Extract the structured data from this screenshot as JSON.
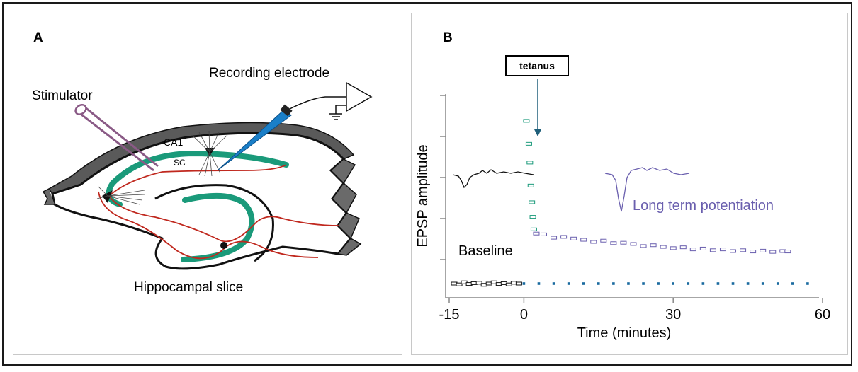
{
  "panel_a": {
    "label": "A",
    "stimulator_label": "Stimulator",
    "recording_label": "Recording electrode",
    "ca1_label": "CA1",
    "sc_label": "SC",
    "slice_label": "Hippocampal slice"
  },
  "panel_b": {
    "label": "B",
    "tetanus_label": "tetanus",
    "baseline_label": "Baseline",
    "ltp_label": "Long term potentiation"
  },
  "colors": {
    "pathway": "#c0281e",
    "cell_layer": "#1a9a7a",
    "ltp_trace": "#6a5fae",
    "baseline_dots": "#1a6aa0",
    "electrode": "#1a7fc8",
    "stimulator": "#8a5a86",
    "arrow": "#1f5f7a"
  },
  "chart_data": {
    "type": "scatter",
    "xlabel": "Time (minutes)",
    "ylabel": "EPSP amplitude",
    "xticks": [
      "-15",
      "0",
      "30",
      "60"
    ],
    "xlim": [
      -15,
      60
    ],
    "grid": false,
    "annotations": [
      "tetanus",
      "Baseline",
      "Long term potentiation"
    ],
    "series": [
      {
        "markers": "black open rectangles",
        "x": [
          -14,
          -13,
          -12,
          -11,
          -10,
          -9,
          -8,
          -7,
          -6,
          -5,
          -4,
          -3,
          -2,
          -1
        ],
        "y": [
          1.0,
          0.98,
          1.03,
          0.99,
          1.01,
          1.02,
          0.97,
          1.0,
          1.03,
          0.99,
          1.01,
          0.98,
          1.02,
          1.0
        ]
      },
      {
        "markers": "green open rectangles",
        "x": [
          0.5,
          1.0,
          1.2,
          1.4,
          1.6,
          1.8,
          2.0
        ],
        "y": [
          4.9,
          4.35,
          3.9,
          3.35,
          2.95,
          2.6,
          2.3
        ]
      },
      {
        "markers": "purple open rectangles",
        "x": [
          2.5,
          4,
          6,
          8,
          10,
          12,
          14,
          16,
          18,
          20,
          22,
          24,
          26,
          28,
          30,
          32,
          34,
          36,
          38,
          40,
          42,
          44,
          46,
          48,
          50,
          52,
          53
        ],
        "y": [
          2.2,
          2.18,
          2.1,
          2.12,
          2.08,
          2.05,
          2.0,
          2.03,
          1.97,
          1.98,
          1.95,
          1.9,
          1.92,
          1.88,
          1.85,
          1.87,
          1.82,
          1.84,
          1.8,
          1.82,
          1.78,
          1.8,
          1.77,
          1.79,
          1.76,
          1.78,
          1.77
        ]
      },
      {
        "markers": "blue dotted baseline",
        "x": [
          0,
          3,
          6,
          9,
          12,
          15,
          18,
          21,
          24,
          27,
          30,
          33,
          36,
          39,
          42,
          45,
          48,
          51,
          54,
          57
        ],
        "y": [
          1,
          1,
          1,
          1,
          1,
          1,
          1,
          1,
          1,
          1,
          1,
          1,
          1,
          1,
          1,
          1,
          1,
          1,
          1,
          1
        ]
      }
    ]
  }
}
